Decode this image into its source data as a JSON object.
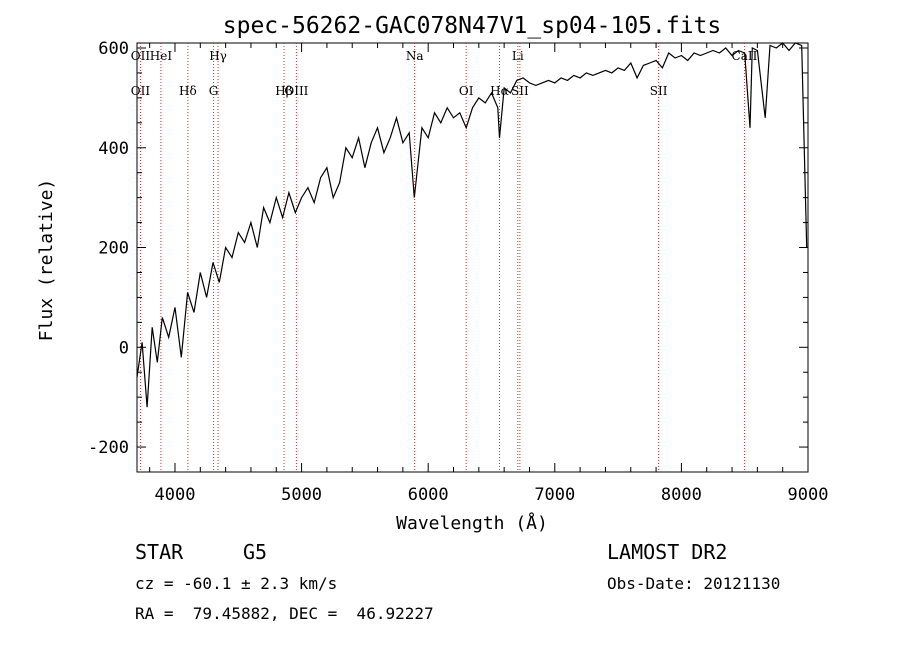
{
  "chart_data": {
    "type": "line",
    "title": "spec-56262-GAC078N47V1_sp04-105.fits",
    "xlabel": "Wavelength (Å)",
    "ylabel": "Flux (relative)",
    "xlim": [
      3700,
      9000
    ],
    "ylim": [
      -250,
      610
    ],
    "x_ticks": [
      4000,
      5000,
      6000,
      7000,
      8000,
      9000
    ],
    "y_ticks": [
      -200,
      0,
      200,
      400,
      600
    ],
    "grid": false,
    "line_color": "#000000",
    "marker_color": "#c0392b",
    "series": [
      {
        "x": [
          3700,
          3740,
          3780,
          3820,
          3860,
          3900,
          3950,
          4000,
          4050,
          4100,
          4150,
          4200,
          4250,
          4300,
          4350,
          4400,
          4450,
          4500,
          4550,
          4600,
          4650,
          4700,
          4750,
          4800,
          4850,
          4900,
          4950,
          5000,
          5050,
          5100,
          5150,
          5200,
          5250,
          5300,
          5350,
          5400,
          5450,
          5500,
          5550,
          5600,
          5650,
          5700,
          5750,
          5800,
          5850,
          5890,
          5950,
          6000,
          6050,
          6100,
          6150,
          6200,
          6250,
          6300,
          6350,
          6400,
          6450,
          6500,
          6550,
          6563,
          6600,
          6650,
          6700,
          6750,
          6800,
          6850,
          6900,
          6950,
          7000,
          7050,
          7100,
          7150,
          7200,
          7250,
          7300,
          7350,
          7400,
          7450,
          7500,
          7550,
          7600,
          7650,
          7700,
          7750,
          7800,
          7850,
          7900,
          7950,
          8000,
          8050,
          8100,
          8150,
          8200,
          8250,
          8300,
          8350,
          8400,
          8450,
          8500,
          8542,
          8560,
          8600,
          8662,
          8700,
          8750,
          8800,
          8850,
          8900,
          8950,
          8990
        ],
        "y": [
          -60,
          10,
          -120,
          40,
          -30,
          60,
          20,
          80,
          -20,
          110,
          70,
          150,
          100,
          170,
          130,
          200,
          180,
          230,
          210,
          250,
          200,
          280,
          250,
          300,
          260,
          310,
          270,
          300,
          320,
          290,
          340,
          360,
          300,
          330,
          400,
          380,
          420,
          360,
          410,
          440,
          390,
          420,
          460,
          410,
          430,
          300,
          440,
          420,
          470,
          450,
          480,
          460,
          470,
          440,
          480,
          500,
          490,
          510,
          480,
          420,
          520,
          510,
          535,
          540,
          530,
          525,
          530,
          535,
          530,
          540,
          535,
          545,
          540,
          550,
          545,
          550,
          555,
          550,
          560,
          555,
          570,
          540,
          565,
          570,
          575,
          560,
          590,
          580,
          585,
          575,
          590,
          585,
          590,
          595,
          590,
          600,
          585,
          595,
          590,
          440,
          600,
          595,
          460,
          605,
          600,
          610,
          595,
          610,
          605,
          200
        ]
      }
    ],
    "line_markers": [
      {
        "x": 3727,
        "top": "OII",
        "bottom": "OII"
      },
      {
        "x": 3889,
        "top": "HeI",
        "bottom": ""
      },
      {
        "x": 4102,
        "top": "",
        "bottom": "Hδ"
      },
      {
        "x": 4305,
        "top": "",
        "bottom": "G"
      },
      {
        "x": 4340,
        "top": "Hγ",
        "bottom": ""
      },
      {
        "x": 4861,
        "top": "",
        "bottom": "Hβ"
      },
      {
        "x": 4959,
        "top": "",
        "bottom": "OIII"
      },
      {
        "x": 5893,
        "top": "Na",
        "bottom": ""
      },
      {
        "x": 6300,
        "top": "",
        "bottom": "OI"
      },
      {
        "x": 6563,
        "top": "",
        "bottom": "Hα"
      },
      {
        "x": 6708,
        "top": "Li",
        "bottom": ""
      },
      {
        "x": 6724,
        "top": "",
        "bottom": "SII"
      },
      {
        "x": 7820,
        "top": "",
        "bottom": "SII"
      },
      {
        "x": 8498,
        "top": "CaII",
        "bottom": ""
      }
    ]
  },
  "info": {
    "object_class": "STAR",
    "subclass": "G5",
    "survey": "LAMOST DR2",
    "cz": "cz = -60.1 ± 2.3 km/s",
    "obs_date": "Obs-Date: 20121130",
    "coords": "RA =  79.45882, DEC =  46.92227"
  }
}
